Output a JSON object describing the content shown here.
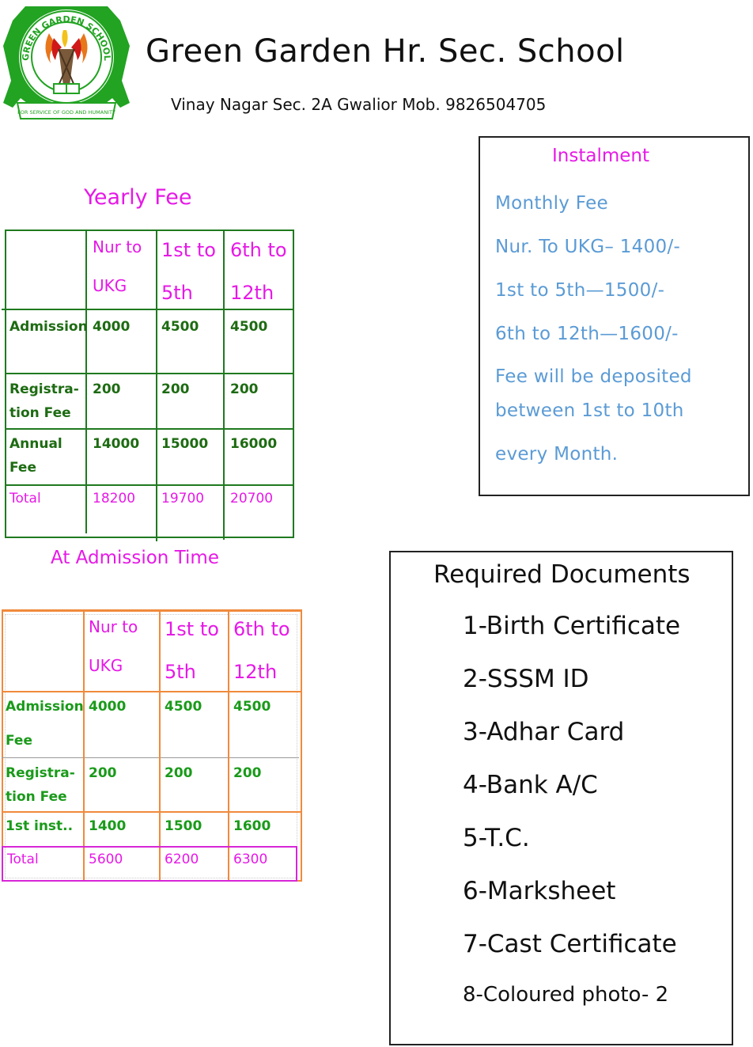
{
  "header": {
    "logo_text_top": "GREEN GARDEN SCHOOL",
    "logo_text_bottom": "FOR SERVICE OF GOD AND HUMANITY",
    "school_name": "Green Garden Hr. Sec. School",
    "address": "Vinay Nagar Sec. 2A Gwalior Mob. 9826504705"
  },
  "yearly_fee": {
    "title": "Yearly Fee",
    "columns": [
      {
        "line1": "Nur to",
        "line2": "UKG"
      },
      {
        "line1": "1st to",
        "line2": "5th"
      },
      {
        "line1": "6th to",
        "line2": "12th"
      }
    ],
    "rows": [
      {
        "label1": "Admission",
        "label2": "",
        "values": [
          "4000",
          "4500",
          "4500"
        ]
      },
      {
        "label1": "Registra-",
        "label2": "tion Fee",
        "values": [
          "200",
          "200",
          "200"
        ]
      },
      {
        "label1": "Annual",
        "label2": "Fee",
        "values": [
          "14000",
          "15000",
          "16000"
        ]
      }
    ],
    "total": {
      "label": "Total",
      "values": [
        "18200",
        "19700",
        "20700"
      ]
    }
  },
  "admission_time": {
    "title": "At Admission Time",
    "columns": [
      {
        "line1": "Nur to",
        "line2": "UKG"
      },
      {
        "line1": "1st to",
        "line2": "5th"
      },
      {
        "line1": "6th to",
        "line2": "12th"
      }
    ],
    "rows": [
      {
        "label1": "Admission",
        "label2": "Fee",
        "values": [
          "4000",
          "4500",
          "4500"
        ]
      },
      {
        "label1": "Registra-",
        "label2": "tion Fee",
        "values": [
          "200",
          "200",
          "200"
        ]
      },
      {
        "label1": "1st inst..",
        "label2": "",
        "values": [
          "1400",
          "1500",
          "1600"
        ]
      }
    ],
    "total": {
      "label": "Total",
      "values": [
        "5600",
        "6200",
        "6300"
      ]
    }
  },
  "instalment": {
    "title": "Instalment",
    "lines": [
      "Monthly Fee",
      "Nur. To UKG– 1400/-",
      "1st to 5th—1500/-",
      "6th to 12th—1600/-",
      "Fee will be deposited",
      "between 1st to 10th",
      "every Month."
    ]
  },
  "documents": {
    "title": "Required Documents",
    "items": [
      "1-Birth Certificate",
      "2-SSSM ID",
      "3-Adhar Card",
      "4-Bank A/C",
      "5-T.C.",
      "6-Marksheet",
      "7-Cast Certificate",
      "8-Coloured photo- 2"
    ]
  },
  "colors": {
    "accent_magenta": "#e619e6",
    "table1_border": "#1f7a1f",
    "table2_border": "#f08a3c",
    "text_green": "#1d6b12",
    "text_blue": "#5b9bd5"
  }
}
